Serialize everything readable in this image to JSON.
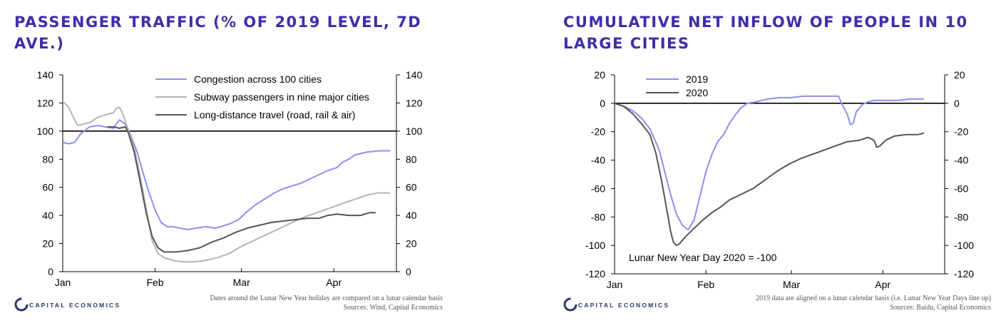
{
  "charts": [
    {
      "title": "PASSENGER TRAFFIC (% OF 2019 LEVEL, 7D AVE.)",
      "note1": "Dates around the Lunar New Year holiday are compared on a lunar calendar basis",
      "note2": "Sources: Wind, Capital Economics",
      "logo": "CAPITAL ECONOMICS"
    },
    {
      "title": "CUMULATIVE NET INFLOW OF PEOPLE IN 10 LARGE CITIES",
      "annotation": "Lunar New Year Day 2020 = -100",
      "note1": "2019 data are aligned on a lunar calendar basis (i.e. Lunar New Year Days line up)",
      "note2": "Sources: Baidu, Capital Economics",
      "logo": "CAPITAL ECONOMICS"
    }
  ],
  "chart_data": [
    {
      "type": "line",
      "title": "PASSENGER TRAFFIC (% OF 2019 LEVEL, 7D AVE.)",
      "xlabel": "",
      "ylabel": "",
      "x_unit": "day of year (Jan 1 = 0)",
      "xlim": [
        0,
        112
      ],
      "ylim": [
        0,
        140
      ],
      "yticks": [
        0,
        20,
        40,
        60,
        80,
        100,
        120,
        140
      ],
      "xticks": [
        {
          "x": 0,
          "label": "Jan"
        },
        {
          "x": 31,
          "label": "Feb"
        },
        {
          "x": 60,
          "label": "Mar"
        },
        {
          "x": 91,
          "label": "Apr"
        }
      ],
      "reference_line": 100,
      "legend_position": "top-center",
      "series": [
        {
          "name": "Congestion across 100 cities",
          "color": "#8f8ef2",
          "points": [
            [
              0,
              92
            ],
            [
              2,
              91
            ],
            [
              4,
              92
            ],
            [
              6,
              98
            ],
            [
              9,
              103
            ],
            [
              12,
              104
            ],
            [
              14,
              103
            ],
            [
              17,
              102
            ],
            [
              19,
              108
            ],
            [
              21,
              105
            ],
            [
              23,
              96
            ],
            [
              25,
              85
            ],
            [
              27,
              70
            ],
            [
              29,
              56
            ],
            [
              31,
              44
            ],
            [
              33,
              35
            ],
            [
              35,
              32
            ],
            [
              37,
              32
            ],
            [
              39,
              31
            ],
            [
              42,
              30
            ],
            [
              45,
              31
            ],
            [
              48,
              32
            ],
            [
              51,
              31
            ],
            [
              53,
              32
            ],
            [
              56,
              34
            ],
            [
              59,
              37
            ],
            [
              62,
              43
            ],
            [
              65,
              48
            ],
            [
              68,
              52
            ],
            [
              71,
              56
            ],
            [
              74,
              59
            ],
            [
              77,
              61
            ],
            [
              80,
              63
            ],
            [
              83,
              66
            ],
            [
              86,
              69
            ],
            [
              89,
              72
            ],
            [
              92,
              74
            ],
            [
              94,
              78
            ],
            [
              96,
              80
            ],
            [
              98,
              83
            ],
            [
              100,
              84
            ],
            [
              102,
              85
            ],
            [
              106,
              86
            ],
            [
              110,
              86
            ]
          ]
        },
        {
          "name": "Subway passengers in nine major cities",
          "color": "#b4b4b4",
          "points": [
            [
              0,
              121
            ],
            [
              2,
              117
            ],
            [
              4,
              108
            ],
            [
              5,
              104
            ],
            [
              7,
              105
            ],
            [
              9,
              106
            ],
            [
              12,
              110
            ],
            [
              15,
              112
            ],
            [
              17,
              113
            ],
            [
              18,
              116
            ],
            [
              19,
              117
            ],
            [
              20,
              113
            ],
            [
              22,
              101
            ],
            [
              24,
              88
            ],
            [
              26,
              68
            ],
            [
              28,
              45
            ],
            [
              30,
              22
            ],
            [
              32,
              13
            ],
            [
              34,
              10
            ],
            [
              37,
              8
            ],
            [
              40,
              7
            ],
            [
              44,
              7
            ],
            [
              48,
              8
            ],
            [
              52,
              10
            ],
            [
              56,
              13
            ],
            [
              60,
              18
            ],
            [
              64,
              22
            ],
            [
              68,
              26
            ],
            [
              72,
              30
            ],
            [
              76,
              34
            ],
            [
              80,
              38
            ],
            [
              84,
              41
            ],
            [
              88,
              44
            ],
            [
              92,
              47
            ],
            [
              96,
              50
            ],
            [
              100,
              53
            ],
            [
              103,
              55
            ],
            [
              106,
              56
            ],
            [
              110,
              56
            ]
          ]
        },
        {
          "name": "Long-distance travel (road, rail & air)",
          "color": "#555555",
          "points": [
            [
              15,
              103
            ],
            [
              17,
              103
            ],
            [
              19,
              102
            ],
            [
              21,
              103
            ],
            [
              22,
              99
            ],
            [
              24,
              85
            ],
            [
              26,
              64
            ],
            [
              28,
              42
            ],
            [
              30,
              25
            ],
            [
              32,
              17
            ],
            [
              34,
              14
            ],
            [
              38,
              14
            ],
            [
              42,
              15
            ],
            [
              46,
              17
            ],
            [
              50,
              21
            ],
            [
              54,
              24
            ],
            [
              58,
              28
            ],
            [
              62,
              31
            ],
            [
              66,
              33
            ],
            [
              70,
              35
            ],
            [
              74,
              36
            ],
            [
              78,
              37
            ],
            [
              82,
              38
            ],
            [
              86,
              38
            ],
            [
              89,
              40
            ],
            [
              92,
              41
            ],
            [
              96,
              40
            ],
            [
              100,
              40
            ],
            [
              103,
              42
            ],
            [
              105,
              42
            ]
          ]
        }
      ]
    },
    {
      "type": "line",
      "title": "CUMULATIVE NET INFLOW OF PEOPLE IN 10 LARGE CITIES",
      "xlabel": "",
      "ylabel": "",
      "x_unit": "day of year (Jan 1 = 0)",
      "xlim": [
        0,
        112
      ],
      "ylim": [
        -120,
        20
      ],
      "yticks": [
        -120,
        -100,
        -80,
        -60,
        -40,
        -20,
        0,
        20
      ],
      "xticks": [
        {
          "x": 0,
          "label": "Jan"
        },
        {
          "x": 31,
          "label": "Feb"
        },
        {
          "x": 60,
          "label": "Mar"
        },
        {
          "x": 91,
          "label": "Apr"
        }
      ],
      "reference_line": 0,
      "legend_position": "top-left",
      "series": [
        {
          "name": "2019",
          "color": "#8f8ef2",
          "points": [
            [
              0,
              0
            ],
            [
              3,
              -2
            ],
            [
              6,
              -5
            ],
            [
              9,
              -10
            ],
            [
              12,
              -18
            ],
            [
              15,
              -32
            ],
            [
              17,
              -48
            ],
            [
              19,
              -64
            ],
            [
              21,
              -78
            ],
            [
              23,
              -86
            ],
            [
              25,
              -89
            ],
            [
              27,
              -82
            ],
            [
              29,
              -65
            ],
            [
              31,
              -48
            ],
            [
              33,
              -36
            ],
            [
              35,
              -27
            ],
            [
              37,
              -22
            ],
            [
              39,
              -14
            ],
            [
              41,
              -8
            ],
            [
              43,
              -3
            ],
            [
              45,
              0
            ],
            [
              48,
              1
            ],
            [
              50,
              2
            ],
            [
              52,
              3
            ],
            [
              56,
              4
            ],
            [
              60,
              4
            ],
            [
              64,
              5
            ],
            [
              68,
              5
            ],
            [
              72,
              5
            ],
            [
              76,
              5
            ],
            [
              77,
              0
            ],
            [
              79,
              -8
            ],
            [
              80,
              -15
            ],
            [
              81,
              -14
            ],
            [
              82,
              -6
            ],
            [
              84,
              -1
            ],
            [
              86,
              1
            ],
            [
              88,
              2
            ],
            [
              92,
              2
            ],
            [
              96,
              2
            ],
            [
              100,
              3
            ],
            [
              103,
              3
            ],
            [
              105,
              3
            ]
          ]
        },
        {
          "name": "2020",
          "color": "#555555",
          "points": [
            [
              0,
              0
            ],
            [
              3,
              -2
            ],
            [
              6,
              -7
            ],
            [
              9,
              -14
            ],
            [
              12,
              -22
            ],
            [
              14,
              -35
            ],
            [
              16,
              -55
            ],
            [
              18,
              -78
            ],
            [
              19,
              -90
            ],
            [
              20,
              -98
            ],
            [
              21,
              -100
            ],
            [
              22,
              -99
            ],
            [
              24,
              -94
            ],
            [
              27,
              -88
            ],
            [
              30,
              -82
            ],
            [
              33,
              -77
            ],
            [
              36,
              -73
            ],
            [
              39,
              -68
            ],
            [
              43,
              -64
            ],
            [
              47,
              -60
            ],
            [
              51,
              -54
            ],
            [
              55,
              -48
            ],
            [
              59,
              -43
            ],
            [
              63,
              -39
            ],
            [
              67,
              -36
            ],
            [
              71,
              -33
            ],
            [
              75,
              -30
            ],
            [
              79,
              -27
            ],
            [
              83,
              -26
            ],
            [
              86,
              -24
            ],
            [
              88,
              -26
            ],
            [
              89,
              -31
            ],
            [
              90,
              -30
            ],
            [
              92,
              -26
            ],
            [
              95,
              -23
            ],
            [
              99,
              -22
            ],
            [
              103,
              -22
            ],
            [
              105,
              -21
            ]
          ]
        }
      ]
    }
  ]
}
